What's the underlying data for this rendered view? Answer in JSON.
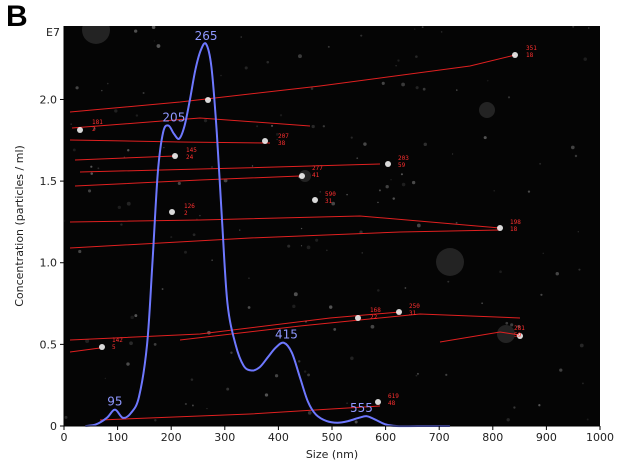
{
  "panel": {
    "label": "B"
  },
  "chart_data": {
    "type": "line",
    "title": "",
    "xlabel": "Size (nm)",
    "ylabel": "Concentration (particles / ml)",
    "y_multiplier_label": "E7",
    "xlim": [
      0,
      1000
    ],
    "ylim": [
      0,
      2.45
    ],
    "x_ticks": [
      0,
      100,
      200,
      300,
      400,
      500,
      600,
      700,
      800,
      900,
      1000
    ],
    "y_ticks": [
      0,
      0.5,
      1.0,
      1.5,
      2.0
    ],
    "y_tick_labels": [
      "0",
      "0.5",
      "1.0",
      "1.5",
      "2.0"
    ],
    "series": [
      {
        "color": "#6e78ff",
        "x": [
          40,
          60,
          80,
          95,
          110,
          125,
          140,
          155,
          165,
          175,
          185,
          195,
          205,
          215,
          225,
          235,
          245,
          255,
          265,
          275,
          285,
          295,
          305,
          320,
          335,
          350,
          365,
          380,
          395,
          410,
          425,
          440,
          455,
          470,
          490,
          510,
          530,
          550,
          565,
          580,
          600,
          620,
          660,
          720
        ],
        "y": [
          0,
          0.01,
          0.05,
          0.1,
          0.05,
          0.08,
          0.18,
          0.5,
          1.0,
          1.55,
          1.8,
          1.84,
          1.79,
          1.76,
          1.84,
          2.0,
          2.18,
          2.3,
          2.34,
          2.2,
          1.8,
          1.25,
          0.75,
          0.5,
          0.37,
          0.34,
          0.36,
          0.42,
          0.48,
          0.51,
          0.45,
          0.3,
          0.15,
          0.07,
          0.03,
          0.02,
          0.03,
          0.05,
          0.06,
          0.04,
          0.01,
          0,
          0,
          0
        ]
      }
    ],
    "annotations": [
      {
        "text": "95",
        "x": 95,
        "y": 0.1
      },
      {
        "text": "205",
        "x": 205,
        "y": 1.84
      },
      {
        "text": "265",
        "x": 265,
        "y": 2.34
      },
      {
        "text": "415",
        "x": 415,
        "y": 0.51
      },
      {
        "text": "555",
        "x": 555,
        "y": 0.06
      }
    ],
    "background": "#050505",
    "track_color": "#e02020",
    "track_labels": [
      "351",
      "18",
      "181",
      "2",
      "207",
      "38",
      "145",
      "24",
      "277",
      "41",
      "203",
      "59",
      "126",
      "2",
      "590",
      "31",
      "198",
      "18",
      "168",
      "22",
      "250",
      "31",
      "281",
      "59",
      "142",
      "5",
      "619",
      "48"
    ]
  }
}
